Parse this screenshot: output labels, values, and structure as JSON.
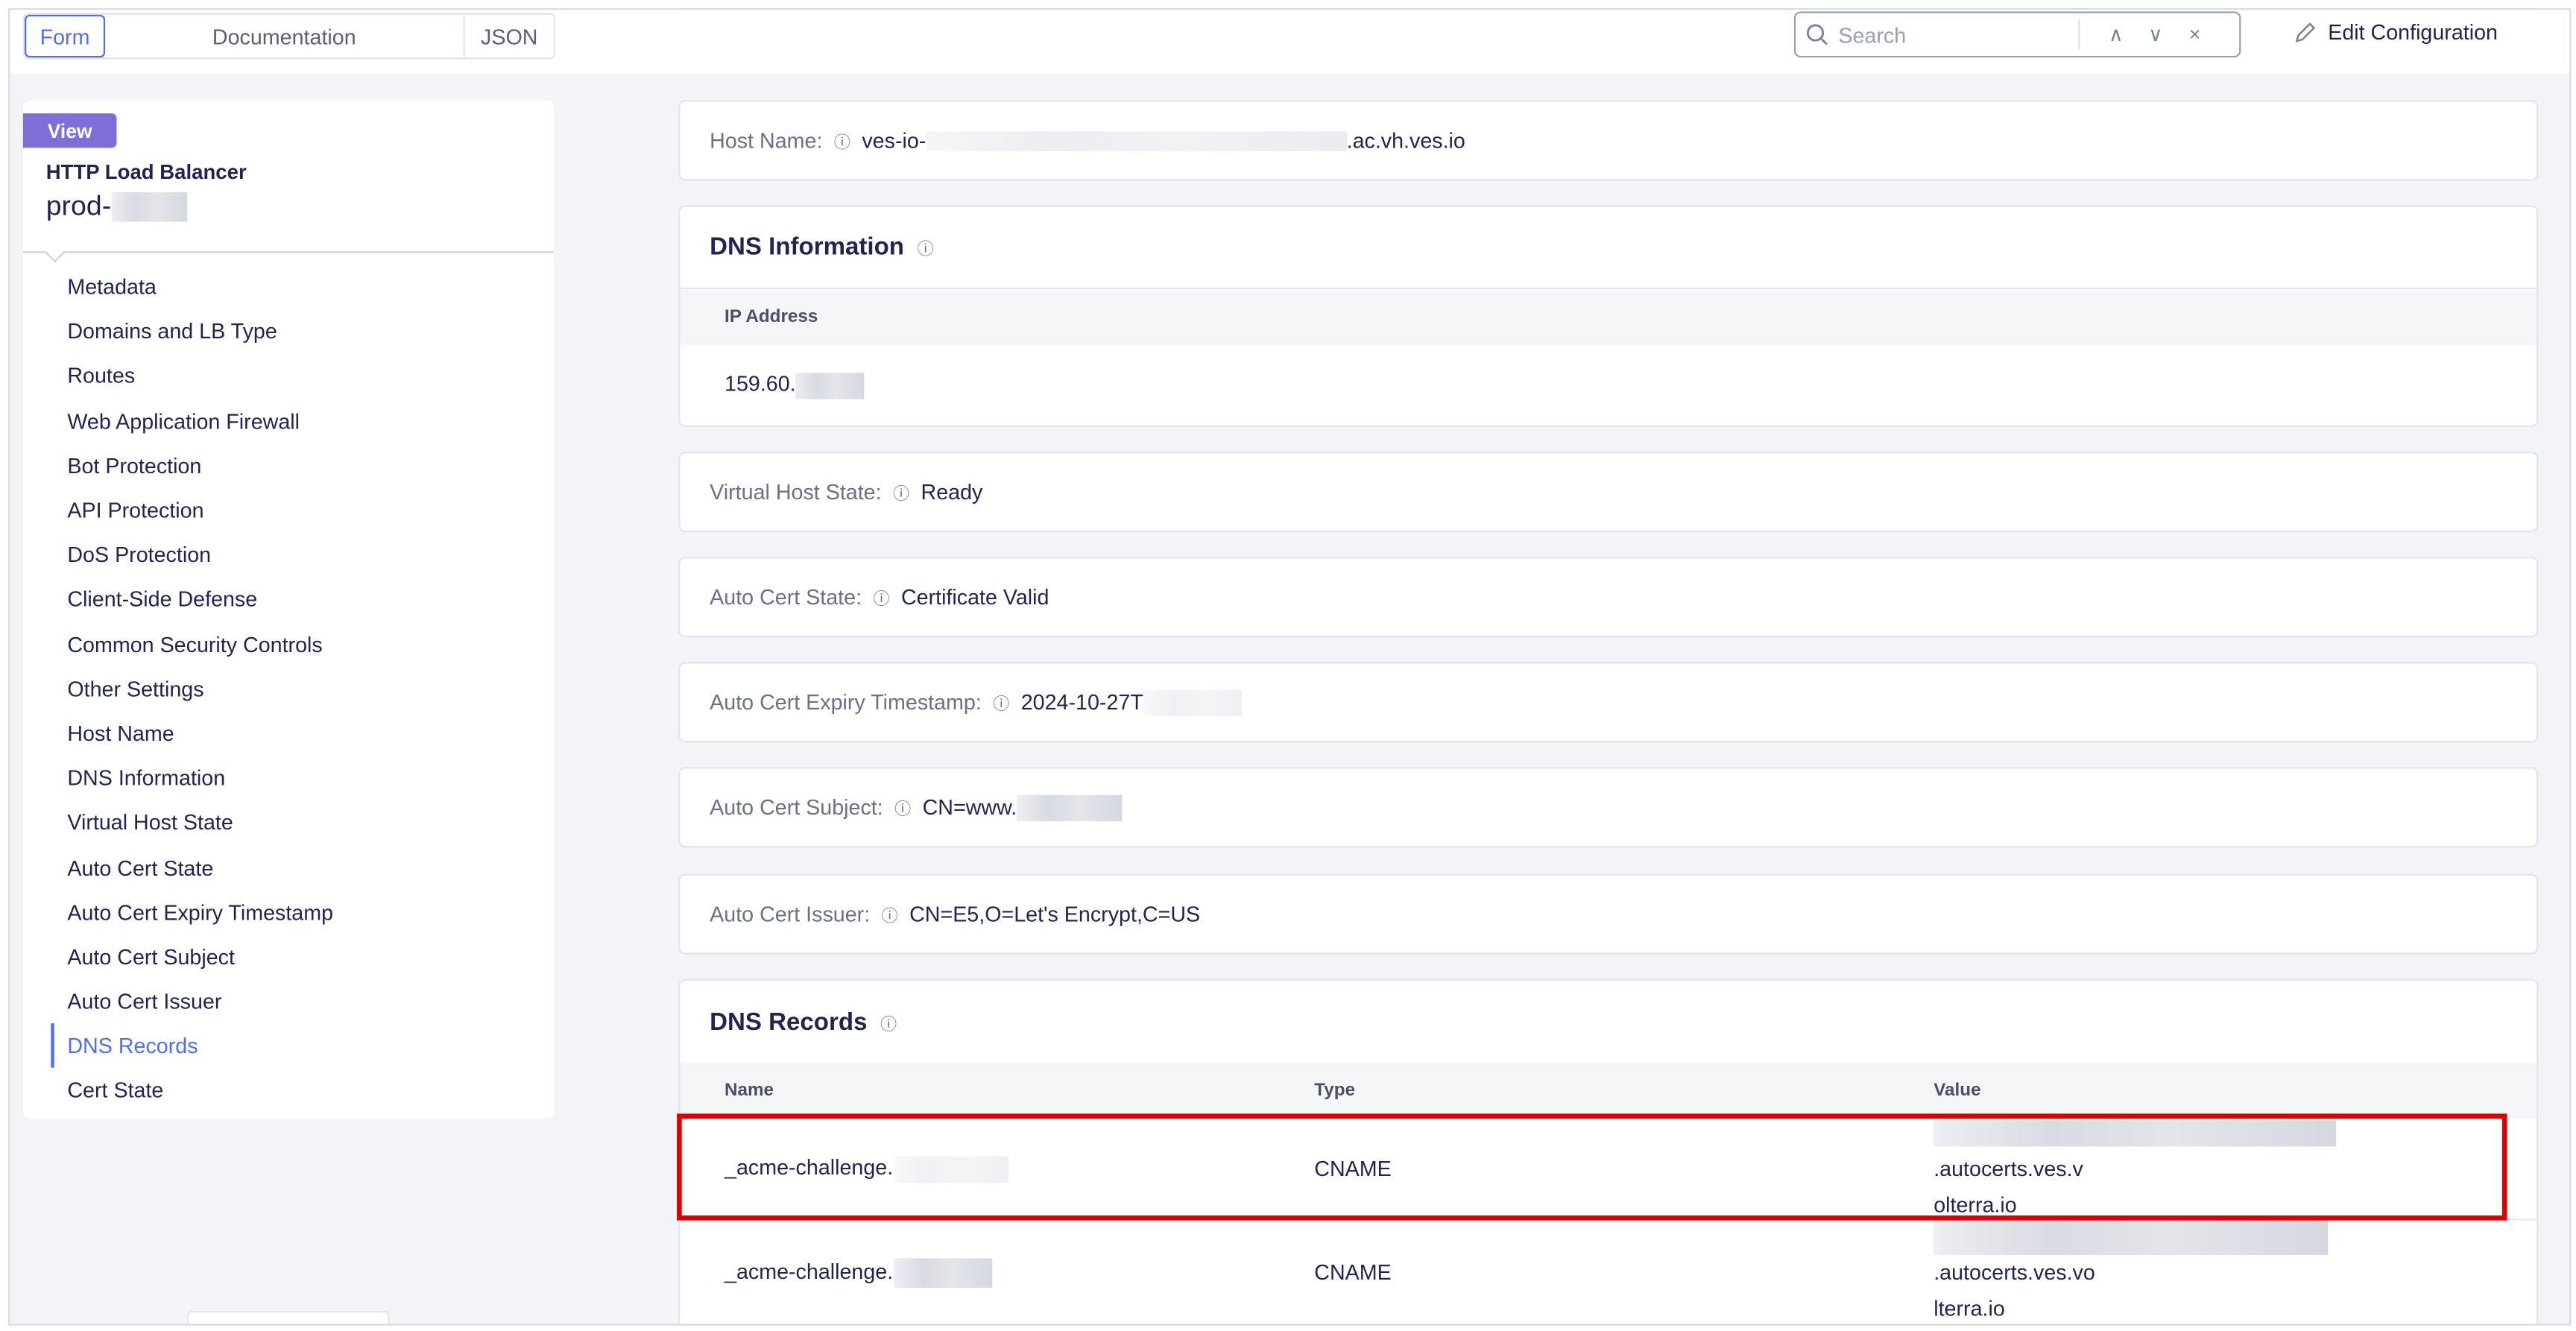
{
  "tabs": [
    {
      "label": "Form",
      "active": true
    },
    {
      "label": "Documentation"
    },
    {
      "label": "JSON"
    }
  ],
  "search": {
    "placeholder": "Search",
    "prev": "∧",
    "next": "∨",
    "close": "×"
  },
  "edit_label": "Edit Configuration",
  "sidebar": {
    "badge": "View",
    "title": "HTTP Load Balancer",
    "name": "prod-",
    "items": [
      "Metadata",
      "Domains and LB Type",
      "Routes",
      "Web Application Firewall",
      "Bot Protection",
      "API Protection",
      "DoS Protection",
      "Client-Side Defense",
      "Common Security Controls",
      "Other Settings",
      "Host Name",
      "DNS Information",
      "Virtual Host State",
      "Auto Cert State",
      "Auto Cert Expiry Timestamp",
      "Auto Cert Subject",
      "Auto Cert Issuer",
      "DNS Records",
      "Cert State"
    ],
    "active": "DNS Records"
  },
  "host_name": {
    "label": "Host Name:",
    "prefix": "ves-io-",
    "suffix": ".ac.vh.ves.io"
  },
  "dns_info": {
    "title": "DNS Information",
    "column": "IP Address",
    "ip_prefix": "159.60."
  },
  "virtual_host_state": {
    "label": "Virtual Host State:",
    "value": "Ready"
  },
  "auto_cert_state": {
    "label": "Auto Cert State:",
    "value": "Certificate Valid"
  },
  "auto_cert_expiry": {
    "label": "Auto Cert Expiry Timestamp:",
    "value": "2024-10-27T"
  },
  "auto_cert_subject": {
    "label": "Auto Cert Subject:",
    "value": "CN=www."
  },
  "auto_cert_issuer": {
    "label": "Auto Cert Issuer:",
    "value": "CN=E5,O=Let's Encrypt,C=US"
  },
  "dns_records": {
    "title": "DNS Records",
    "columns": [
      "Name",
      "Type",
      "Value"
    ],
    "rows": [
      {
        "name": "_acme-challenge.",
        "type": "CNAME",
        "value_suffix": ".autocerts.ves.v",
        "value_line2": "olterra.io",
        "highlighted": true
      },
      {
        "name": "_acme-challenge.",
        "type": "CNAME",
        "value_suffix": ".autocerts.ves.vo",
        "value_line2": "lterra.io"
      }
    ]
  },
  "colors": {
    "accent": "#4f6df5",
    "badge": "#7e6fd8",
    "highlight": "#e00000"
  }
}
